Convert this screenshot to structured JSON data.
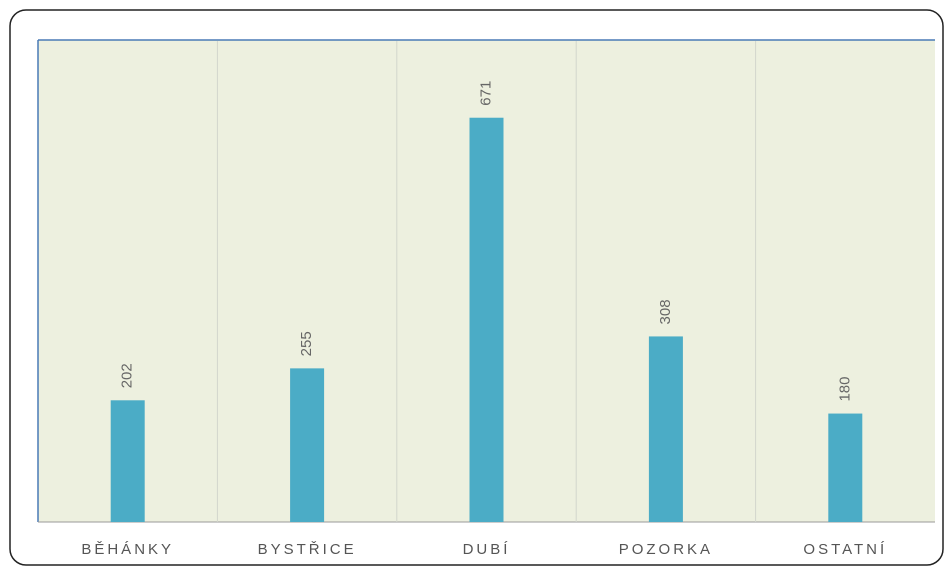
{
  "chart_data": {
    "type": "bar",
    "categories": [
      "BĚHÁNKY",
      "BYSTŘICE",
      "DUBÍ",
      "POZORKA",
      "OSTATNÍ"
    ],
    "values": [
      202,
      255,
      671,
      308,
      180
    ],
    "color": "#4bacc6",
    "ylim": [
      0,
      800
    ]
  }
}
